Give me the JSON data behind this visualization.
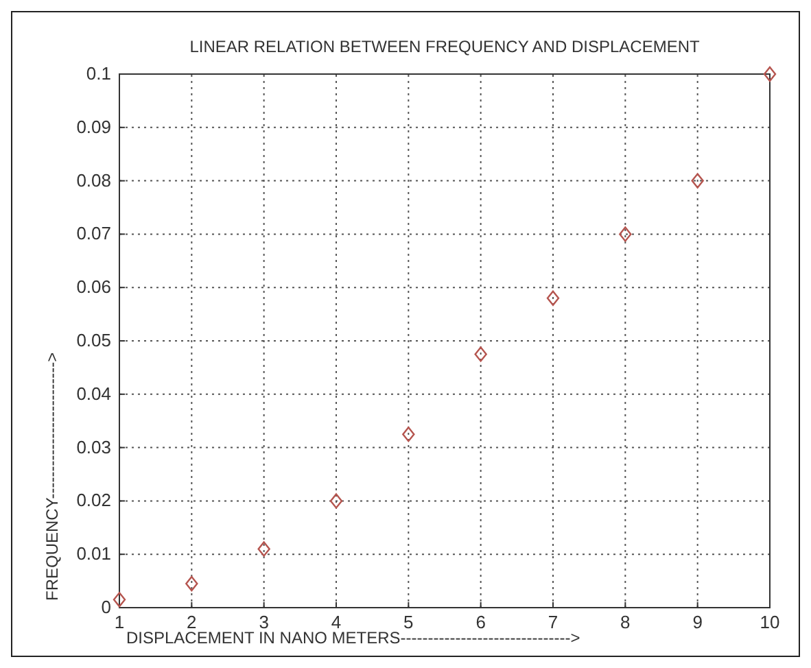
{
  "chart_data": {
    "type": "scatter",
    "title": "LINEAR RELATION BETWEEN FREQUENCY AND DISPLACEMENT",
    "xlabel": "DISPLACEMENT IN NANO METERS------------------------------->",
    "ylabel": "FREQUENCY------------------------->",
    "x": [
      1,
      2,
      3,
      4,
      5,
      6,
      7,
      8,
      9,
      10
    ],
    "series": [
      {
        "color": "#b5544e",
        "values": [
          0.0015,
          0.0045,
          0.011,
          0.02,
          0.0325,
          0.0475,
          0.058,
          0.07,
          0.08,
          0.1
        ]
      }
    ],
    "xlim": [
      1,
      10
    ],
    "xticks": [
      1,
      2,
      3,
      4,
      5,
      6,
      7,
      8,
      9,
      10
    ],
    "ylim": [
      0,
      0.1
    ],
    "yticks": [
      0,
      0.01,
      0.02,
      0.03,
      0.04,
      0.05,
      0.06,
      0.07,
      0.08,
      0.09,
      0.1
    ],
    "grid": true,
    "marker": "diamond",
    "line_style": "dotted"
  }
}
